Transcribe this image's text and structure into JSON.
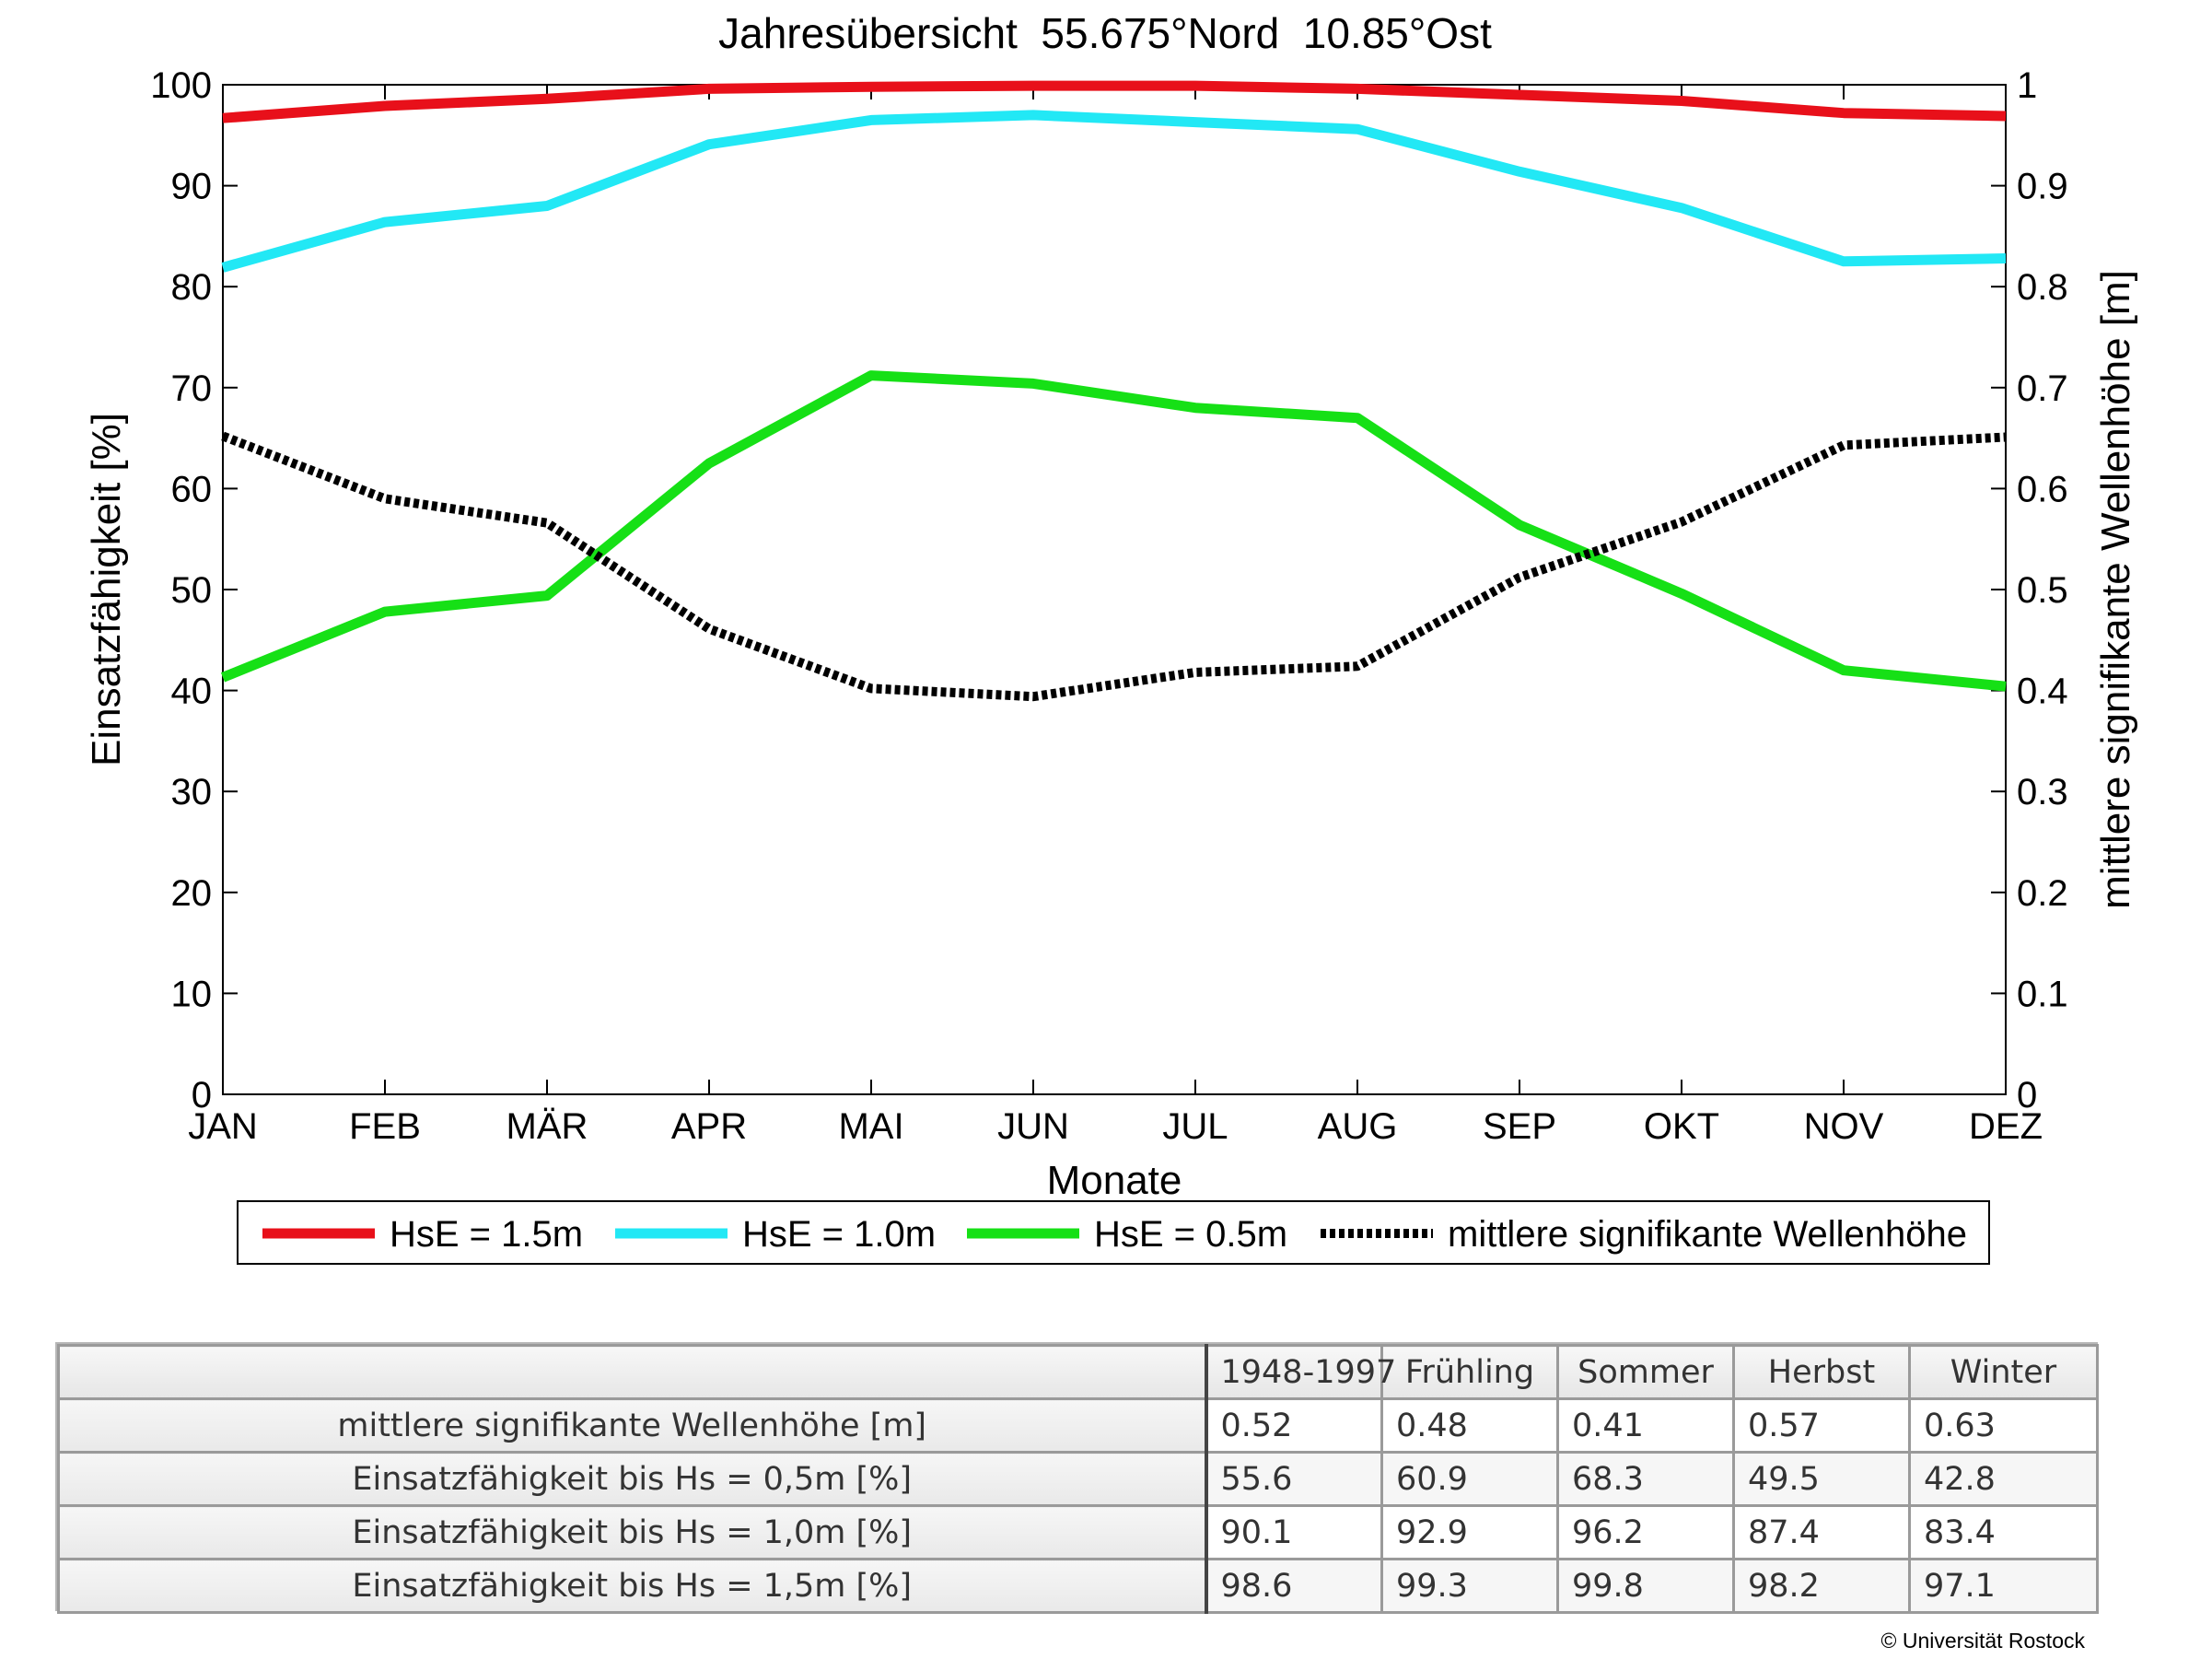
{
  "chart_data": {
    "type": "line",
    "title": "Jahresübersicht  55.675°Nord  10.85°Ost",
    "xlabel": "Monate",
    "ylabel": "Einsatzfähigkeit [%]",
    "y2label": "mittlere signifikante Wellenhöhe [m]",
    "categories": [
      "JAN",
      "FEB",
      "MÄR",
      "APR",
      "MAI",
      "JUN",
      "JUL",
      "AUG",
      "SEP",
      "OKT",
      "NOV",
      "DEZ"
    ],
    "ylim": [
      0,
      100
    ],
    "y2lim": [
      0,
      1
    ],
    "yticks": [
      "0",
      "10",
      "20",
      "30",
      "40",
      "50",
      "60",
      "70",
      "80",
      "90",
      "100"
    ],
    "y2ticks": [
      "0",
      "0.1",
      "0.2",
      "0.3",
      "0.4",
      "0.5",
      "0.6",
      "0.7",
      "0.8",
      "0.9",
      "1"
    ],
    "legend_position": "bottom",
    "series": [
      {
        "name": "HsE = 1.5m",
        "axis": "left",
        "color": "#e8101a",
        "style": "solid",
        "values": [
          96.7,
          97.9,
          98.6,
          99.6,
          99.8,
          99.9,
          99.9,
          99.6,
          99.0,
          98.4,
          97.2,
          96.9
        ]
      },
      {
        "name": "HsE = 1.0m",
        "axis": "left",
        "color": "#22e8f5",
        "style": "solid",
        "values": [
          81.9,
          86.4,
          88.0,
          94.1,
          96.5,
          97.0,
          96.3,
          95.6,
          91.4,
          87.8,
          82.5,
          82.8
        ]
      },
      {
        "name": "HsE = 0.5m",
        "axis": "left",
        "color": "#16e016",
        "style": "solid",
        "values": [
          41.3,
          47.8,
          49.4,
          62.5,
          71.2,
          70.4,
          68.0,
          67.0,
          56.4,
          49.6,
          42.0,
          40.4
        ]
      },
      {
        "name": "mittlere signifikante Wellenhöhe",
        "axis": "right",
        "color": "#000000",
        "style": "dotted",
        "values": [
          0.652,
          0.59,
          0.566,
          0.461,
          0.402,
          0.394,
          0.418,
          0.424,
          0.512,
          0.567,
          0.643,
          0.651
        ]
      }
    ]
  },
  "table": {
    "headers": [
      "",
      "1948-1997",
      "Frühling",
      "Sommer",
      "Herbst",
      "Winter"
    ],
    "rows": [
      {
        "label": "mittlere signifikante Wellenhöhe [m]",
        "values": [
          "0.52",
          "0.48",
          "0.41",
          "0.57",
          "0.63"
        ]
      },
      {
        "label": "Einsatzfähigkeit bis Hs = 0,5m [%]",
        "values": [
          "55.6",
          "60.9",
          "68.3",
          "49.5",
          "42.8"
        ]
      },
      {
        "label": "Einsatzfähigkeit bis Hs = 1,0m [%]",
        "values": [
          "90.1",
          "92.9",
          "96.2",
          "87.4",
          "83.4"
        ]
      },
      {
        "label": "Einsatzfähigkeit bis Hs = 1,5m [%]",
        "values": [
          "98.6",
          "99.3",
          "99.8",
          "98.2",
          "97.1"
        ]
      }
    ]
  },
  "copyright": "© Universität Rostock"
}
